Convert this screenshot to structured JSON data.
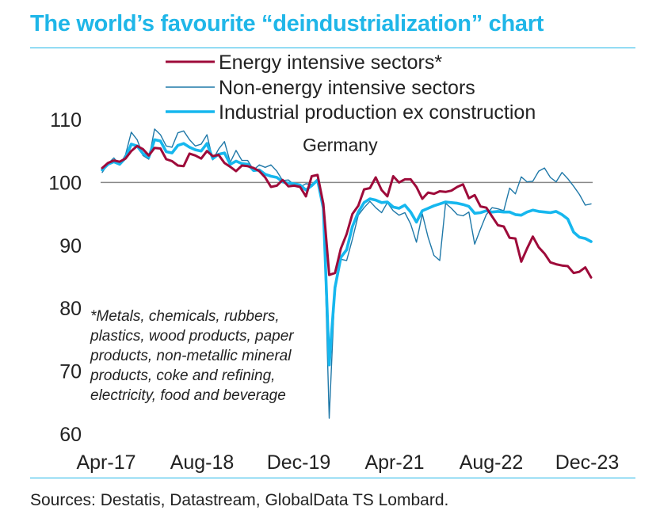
{
  "title": "The world’s favourite “deindustrialization” chart",
  "source": "Sources: Destatis, Datastream, GlobalData TS Lombard.",
  "footnote": "*Metals, chemicals, rubbers, plastics, wood products, paper products, non-metallic mineral products, coke and refining, electricity, food and beverage",
  "colors": {
    "accent": "#1fb6e8",
    "energy": "#9e0b3a",
    "non_energy": "#1f78a8",
    "industrial": "#16b7ee",
    "reference": "#888888"
  },
  "chart_data": {
    "type": "line",
    "title": "Germany",
    "xlabel": "",
    "ylabel": "",
    "x_start": "Apr-17",
    "x_end": "Dec-23",
    "x_ticks": [
      "Apr-17",
      "Aug-18",
      "Dec-19",
      "Apr-21",
      "Aug-22",
      "Dec-23"
    ],
    "y_ticks": [
      60,
      70,
      80,
      90,
      100,
      110
    ],
    "ylim": [
      60,
      110
    ],
    "reference_line": 100,
    "legend_position": "top",
    "series": [
      {
        "name": "Energy intensive sectors*",
        "color": "#9e0b3a",
        "values": [
          102.3,
          103.1,
          103.5,
          103.3,
          103.8,
          105.0,
          105.8,
          105.3,
          104.3,
          105.5,
          105.4,
          103.7,
          103.4,
          102.7,
          102.6,
          104.6,
          104.3,
          103.8,
          105.0,
          104.2,
          104.4,
          103.1,
          102.5,
          101.8,
          102.7,
          102.6,
          102.3,
          101.8,
          100.8,
          99.3,
          99.5,
          100.4,
          99.4,
          99.5,
          99.3,
          97.8,
          101.0,
          101.2,
          96.6,
          85.3,
          85.6,
          89.5,
          91.8,
          95.0,
          96.3,
          98.9,
          99.1,
          100.8,
          98.8,
          97.8,
          101.0,
          100.0,
          100.5,
          100.5,
          99.3,
          97.4,
          98.4,
          98.2,
          98.6,
          98.5,
          98.7,
          99.3,
          99.7,
          97.5,
          98.0,
          96.2,
          96.0,
          94.6,
          93.2,
          93.0,
          91.2,
          91.1,
          87.4,
          89.5,
          91.4,
          89.7,
          88.7,
          87.3,
          87.0,
          86.8,
          86.7,
          85.6,
          85.8,
          86.5,
          84.9
        ]
      },
      {
        "name": "Non-energy intensive sectors",
        "color": "#1f78a8",
        "values": [
          101.6,
          103.0,
          103.9,
          102.8,
          104.4,
          108.0,
          106.8,
          104.3,
          103.7,
          108.5,
          107.6,
          105.8,
          105.6,
          107.9,
          108.2,
          106.8,
          105.8,
          106.1,
          107.6,
          103.6,
          105.3,
          106.5,
          103.2,
          105.1,
          103.5,
          103.5,
          102.0,
          102.8,
          102.4,
          102.8,
          101.8,
          100.3,
          100.4,
          99.6,
          99.3,
          99.8,
          99.7,
          100.1,
          96.0,
          62.5,
          83.5,
          87.8,
          87.6,
          91.0,
          94.8,
          96.0,
          97.0,
          96.0,
          95.2,
          96.8,
          95.5,
          94.8,
          95.2,
          93.4,
          90.5,
          95.0,
          91.3,
          88.4,
          87.6,
          96.7,
          95.9,
          94.9,
          94.7,
          95.3,
          90.2,
          92.6,
          94.9,
          96.0,
          95.8,
          95.5,
          99.1,
          98.2,
          100.9,
          100.1,
          100.2,
          101.8,
          102.3,
          100.8,
          100.1,
          101.6,
          100.6,
          99.4,
          98.1,
          96.4,
          96.6
        ]
      },
      {
        "name": "Industrial production ex construction",
        "color": "#16b7ee",
        "values": [
          102.0,
          102.9,
          103.3,
          102.9,
          103.9,
          106.1,
          105.8,
          104.6,
          104.0,
          106.8,
          106.6,
          104.9,
          104.7,
          105.9,
          106.2,
          105.6,
          105.2,
          105.0,
          106.2,
          103.8,
          104.5,
          104.7,
          102.9,
          103.4,
          103.0,
          102.9,
          101.9,
          102.0,
          101.3,
          101.0,
          100.8,
          100.1,
          99.9,
          99.8,
          99.6,
          98.8,
          99.5,
          100.4,
          95.9,
          71.0,
          83.3,
          88.1,
          89.3,
          93.0,
          95.3,
          96.8,
          97.4,
          97.2,
          96.8,
          96.9,
          96.1,
          95.9,
          96.4,
          95.3,
          93.7,
          95.5,
          95.9,
          96.3,
          96.6,
          96.9,
          96.8,
          96.7,
          96.5,
          96.2,
          95.1,
          95.2,
          95.5,
          95.3,
          95.4,
          95.3,
          95.3,
          94.9,
          94.8,
          95.3,
          95.6,
          95.4,
          95.3,
          95.2,
          95.4,
          94.9,
          94.2,
          92.1,
          91.3,
          91.1,
          90.6
        ]
      }
    ]
  }
}
